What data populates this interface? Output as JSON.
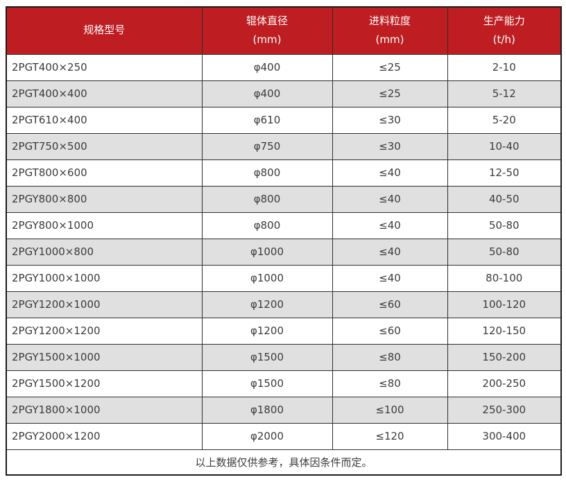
{
  "chart_data": {
    "type": "table",
    "columns": [
      {
        "title": "规格型号",
        "unit": ""
      },
      {
        "title": "辊体直径",
        "unit": "(mm)"
      },
      {
        "title": "进料粒度",
        "unit": "(mm)"
      },
      {
        "title": "生产能力",
        "unit": "(t/h)"
      }
    ],
    "rows": [
      [
        "2PGT400×250",
        "φ400",
        "≤25",
        "2-10"
      ],
      [
        "2PGT400×400",
        "φ400",
        "≤25",
        "5-12"
      ],
      [
        "2PGT610×400",
        "φ610",
        "≤30",
        "5-20"
      ],
      [
        "2PGT750×500",
        "φ750",
        "≤30",
        "10-40"
      ],
      [
        "2PGT800×600",
        "φ800",
        "≤40",
        "12-50"
      ],
      [
        "2PGY800×800",
        "φ800",
        "≤40",
        "40-50"
      ],
      [
        "2PGY800×1000",
        "φ800",
        "≤40",
        "50-80"
      ],
      [
        "2PGY1000×800",
        "φ1000",
        "≤40",
        "50-80"
      ],
      [
        "2PGY1000×1000",
        "φ1000",
        "≤40",
        "80-100"
      ],
      [
        "2PGY1200×1000",
        "φ1200",
        "≤60",
        "100-120"
      ],
      [
        "2PGY1200×1200",
        "φ1200",
        "≤60",
        "120-150"
      ],
      [
        "2PGY1500×1000",
        "φ1500",
        "≤80",
        "150-200"
      ],
      [
        "2PGY1500×1200",
        "φ1500",
        "≤80",
        "200-250"
      ],
      [
        "2PGY1800×1000",
        "φ1800",
        "≤100",
        "250-300"
      ],
      [
        "2PGY2000×1200",
        "φ2000",
        "≤120",
        "300-400"
      ]
    ],
    "footer_note": "以上数据仅供参考，具体因条件而定。"
  },
  "colors": {
    "header_bg": "#be1e22",
    "header_text": "#ffffff",
    "row_bg": "#ffffff",
    "row_alt_bg": "#e0e0e0",
    "grid_border": "#2e2e2e",
    "outer_border": "#1b1b1b",
    "body_text": "#3b3b3b"
  }
}
